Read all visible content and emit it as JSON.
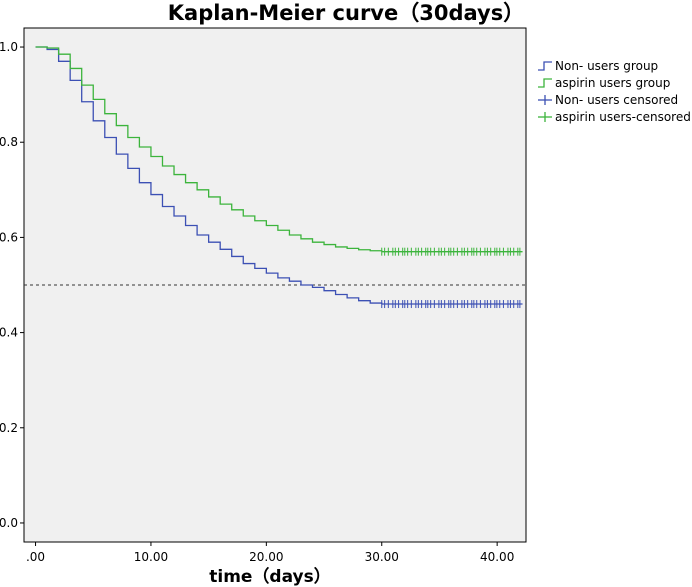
{
  "chart_data": {
    "type": "line",
    "title": "Kaplan-Meier curve（30days）",
    "xlabel": "time（days）",
    "ylabel": "",
    "xlim": [
      -1,
      42.5
    ],
    "ylim": [
      -0.04,
      1.04
    ],
    "x_ticks": [
      ".00",
      "10.00",
      "20.00",
      "30.00",
      "40.00"
    ],
    "x_tick_values": [
      0,
      10,
      20,
      30,
      40
    ],
    "y_ticks": [
      "0.0",
      "0.2",
      "0.4",
      "0.6",
      "0.8",
      "1.0"
    ],
    "y_tick_values": [
      0,
      0.2,
      0.4,
      0.6,
      0.8,
      1.0
    ],
    "reference_line": {
      "y": 0.5,
      "style": "dashed"
    },
    "background": "#f0f0f0",
    "grid": false,
    "legend_position": "right",
    "series": [
      {
        "name": "Non- users group",
        "color": "#3c50b4",
        "x": [
          0,
          1,
          2,
          3,
          4,
          5,
          6,
          7,
          8,
          9,
          10,
          11,
          12,
          13,
          14,
          15,
          16,
          17,
          18,
          19,
          20,
          21,
          22,
          23,
          24,
          25,
          26,
          27,
          28,
          29,
          30
        ],
        "values": [
          1.0,
          0.995,
          0.97,
          0.93,
          0.885,
          0.845,
          0.81,
          0.775,
          0.745,
          0.715,
          0.69,
          0.665,
          0.645,
          0.625,
          0.605,
          0.59,
          0.575,
          0.56,
          0.545,
          0.535,
          0.525,
          0.515,
          0.508,
          0.5,
          0.495,
          0.488,
          0.48,
          0.473,
          0.467,
          0.462,
          0.46
        ]
      },
      {
        "name": "aspirin users group",
        "color": "#3cb43c",
        "x": [
          0,
          1,
          2,
          3,
          4,
          5,
          6,
          7,
          8,
          9,
          10,
          11,
          12,
          13,
          14,
          15,
          16,
          17,
          18,
          19,
          20,
          21,
          22,
          23,
          24,
          25,
          26,
          27,
          28,
          29,
          30
        ],
        "values": [
          1.0,
          0.998,
          0.985,
          0.955,
          0.92,
          0.89,
          0.86,
          0.835,
          0.81,
          0.79,
          0.77,
          0.75,
          0.732,
          0.715,
          0.7,
          0.685,
          0.67,
          0.658,
          0.645,
          0.635,
          0.625,
          0.615,
          0.605,
          0.597,
          0.59,
          0.585,
          0.58,
          0.577,
          0.574,
          0.572,
          0.57
        ]
      }
    ],
    "censored": [
      {
        "name": "Non- users censored",
        "color": "#3c50b4",
        "y": 0.46,
        "x_from": 30,
        "x_to": 42.2
      },
      {
        "name": "aspirin users-censored",
        "color": "#3cb43c",
        "y": 0.57,
        "x_from": 30,
        "x_to": 42.2
      }
    ],
    "legend": [
      {
        "label": "Non- users group",
        "color": "#3c50b4",
        "marker": "step"
      },
      {
        "label": "aspirin users group",
        "color": "#3cb43c",
        "marker": "step"
      },
      {
        "label": "Non- users censored",
        "color": "#3c50b4",
        "marker": "plus"
      },
      {
        "label": "aspirin users-censored",
        "color": "#3cb43c",
        "marker": "plus"
      }
    ]
  }
}
